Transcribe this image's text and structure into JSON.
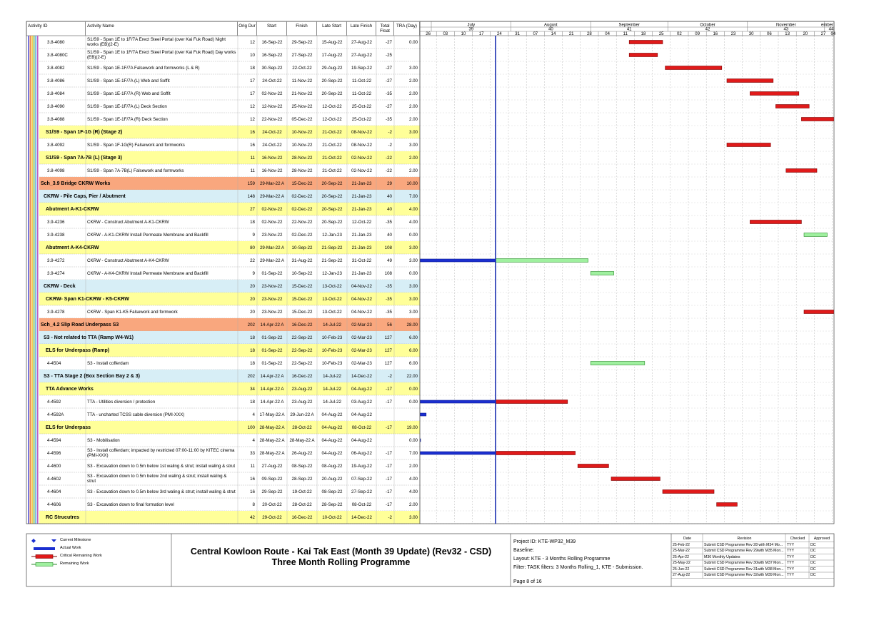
{
  "columns": [
    "Activity ID",
    "Activity Name",
    "Orig Dur",
    "Start",
    "Finish",
    "Late Start",
    "Late Finish",
    "Total Float",
    "TRA (Day)"
  ],
  "timeline": {
    "months": [
      "July",
      "August",
      "September",
      "October",
      "November",
      "ember"
    ],
    "periods": [
      "39",
      "40",
      "41",
      "42",
      "43",
      "44"
    ],
    "days": [
      "26",
      "03",
      "10",
      "17",
      "24",
      "31",
      "07",
      "14",
      "21",
      "28",
      "04",
      "11",
      "18",
      "25",
      "02",
      "09",
      "16",
      "23",
      "30",
      "06",
      "13",
      "20",
      "27",
      "04"
    ]
  },
  "rows": [
    {
      "level": "activity",
      "id": "3.8-4080",
      "name": "S1/S9 - Span 1E to 1F/7A Erect Steel Portal (over Kai Fuk Road) Night works (EB)(2-E)",
      "orig_dur": 12,
      "start": "16-Sep-22",
      "finish": "29-Sep-22",
      "late_start": "15-Aug-22",
      "late_finish": "27-Aug-22",
      "total_float": -27,
      "tra": "0.00"
    },
    {
      "level": "activity",
      "id": "3.8-4080C",
      "name": "S1/S9 - Span 1E to 1F/7A Erect Steel Portal (over Kai Fuk Road) Day works (EB)(2-E)",
      "orig_dur": 10,
      "start": "16-Sep-22",
      "finish": "27-Sep-22",
      "late_start": "17-Aug-22",
      "late_finish": "27-Aug-22",
      "total_float": -25,
      "tra": null
    },
    {
      "level": "activity",
      "id": "3.8-4082",
      "name": "S1/S9 - Span 1E-1F/7A Falsework and formworks (L & R)",
      "orig_dur": 18,
      "start": "30-Sep-22",
      "finish": "22-Oct-22",
      "late_start": "29-Aug-22",
      "late_finish": "19-Sep-22",
      "total_float": -27,
      "tra": "3.00"
    },
    {
      "level": "activity",
      "id": "3.8-4086",
      "name": "S1/S9 - Span 1E-1F/7A (L) Web and Soffit",
      "orig_dur": 17,
      "start": "24-Oct-22",
      "finish": "11-Nov-22",
      "late_start": "20-Sep-22",
      "late_finish": "11-Oct-22",
      "total_float": -27,
      "tra": "2.00"
    },
    {
      "level": "activity",
      "id": "3.8-4084",
      "name": "S1/S9 - Span 1E-1F/7A (R) Web and Soffit",
      "orig_dur": 17,
      "start": "02-Nov-22",
      "finish": "21-Nov-22",
      "late_start": "20-Sep-22",
      "late_finish": "11-Oct-22",
      "total_float": -35,
      "tra": "2.00"
    },
    {
      "level": "activity",
      "id": "3.8-4090",
      "name": "S1/S9 - Span 1E-1F/7A (L) Deck Section",
      "orig_dur": 12,
      "start": "12-Nov-22",
      "finish": "25-Nov-22",
      "late_start": "12-Oct-22",
      "late_finish": "25-Oct-22",
      "total_float": -27,
      "tra": "2.00"
    },
    {
      "level": "activity",
      "id": "3.8-4088",
      "name": "S1/S9 - Span 1E-1F/7A (R) Deck Section",
      "orig_dur": 12,
      "start": "22-Nov-22",
      "finish": "05-Dec-22",
      "late_start": "12-Oct-22",
      "late_finish": "25-Oct-22",
      "total_float": -35,
      "tra": "2.00"
    },
    {
      "level": "wbs3",
      "name": "S1/S9 - Span 1F-1G (R) (Stage 2)",
      "orig_dur": 16,
      "start": "24-Oct-22",
      "finish": "10-Nov-22",
      "late_start": "21-Oct-22",
      "late_finish": "08-Nov-22",
      "total_float": -2,
      "tra": "3.00"
    },
    {
      "level": "activity",
      "id": "3.8-4092",
      "name": "S1/S9 - Span 1F-1G(R) Falsework and formworks",
      "orig_dur": 16,
      "start": "24-Oct-22",
      "finish": "10-Nov-22",
      "late_start": "21-Oct-22",
      "late_finish": "08-Nov-22",
      "total_float": -2,
      "tra": "3.00"
    },
    {
      "level": "wbs3",
      "name": "S1/S9 - Span 7A-7B (L) (Stage 3)",
      "orig_dur": 11,
      "start": "16-Nov-22",
      "finish": "28-Nov-22",
      "late_start": "21-Oct-22",
      "late_finish": "02-Nov-22",
      "total_float": -22,
      "tra": "2.00"
    },
    {
      "level": "activity",
      "id": "3.8-4098",
      "name": "S1/S9 - Span 7A-7B(L) Falsework and formworks",
      "orig_dur": 11,
      "start": "16-Nov-22",
      "finish": "28-Nov-22",
      "late_start": "21-Oct-22",
      "late_finish": "02-Nov-22",
      "total_float": -22,
      "tra": "2.00"
    },
    {
      "level": "wbs1",
      "name": "Sch_3.9 Bridge CKRW Works",
      "orig_dur": 159,
      "start": "29-Mar-22 A",
      "finish": "15-Dec-22",
      "late_start": "20-Sep-22",
      "late_finish": "21-Jan-23",
      "total_float": 29,
      "tra": "10.00"
    },
    {
      "level": "wbs2",
      "name": "CKRW - Pile Caps, Pier / Abutment",
      "orig_dur": 148,
      "start": "29-Mar-22 A",
      "finish": "02-Dec-22",
      "late_start": "20-Sep-22",
      "late_finish": "21-Jan-23",
      "total_float": 40,
      "tra": "7.00"
    },
    {
      "level": "wbs3",
      "name": "Abutment A-K1-CKRW",
      "orig_dur": 27,
      "start": "02-Nov-22",
      "finish": "02-Dec-22",
      "late_start": "20-Sep-22",
      "late_finish": "21-Jan-23",
      "total_float": 40,
      "tra": "4.00"
    },
    {
      "level": "activity",
      "id": "3.9-4236",
      "name": "CKRW - Construct Abutment A-K1-CKRW",
      "orig_dur": 18,
      "start": "02-Nov-22",
      "finish": "22-Nov-22",
      "late_start": "20-Sep-22",
      "late_finish": "12-Oct-22",
      "total_float": -35,
      "tra": "4.00"
    },
    {
      "level": "activity",
      "id": "3.9-4238",
      "name": "CKRW - A-K1-CKRW Install Permeate Membrane and Backfill",
      "orig_dur": 9,
      "start": "23-Nov-22",
      "finish": "02-Dec-22",
      "late_start": "12-Jan-23",
      "late_finish": "21-Jan-23",
      "total_float": 40,
      "tra": "0.00"
    },
    {
      "level": "wbs3",
      "name": "Abutment A-K4-CKRW",
      "orig_dur": 80,
      "start": "29-Mar-22 A",
      "finish": "10-Sep-22",
      "late_start": "21-Sep-22",
      "late_finish": "21-Jan-23",
      "total_float": 108,
      "tra": "3.00"
    },
    {
      "level": "activity",
      "id": "3.9-4272",
      "name": "CKRW - Construct Abutment A-K4-CKRW",
      "orig_dur": 22,
      "start": "29-Mar-22 A",
      "finish": "31-Aug-22",
      "late_start": "21-Sep-22",
      "late_finish": "31-Oct-22",
      "total_float": 49,
      "tra": "3.00"
    },
    {
      "level": "activity",
      "id": "3.9-4274",
      "name": "CKRW - A-K4-CKRW Install Permeate Membrane and Backfill",
      "orig_dur": 9,
      "start": "01-Sep-22",
      "finish": "10-Sep-22",
      "late_start": "12-Jan-23",
      "late_finish": "21-Jan-23",
      "total_float": 108,
      "tra": "0.00"
    },
    {
      "level": "wbs2",
      "name": "CKRW - Deck",
      "orig_dur": 20,
      "start": "23-Nov-22",
      "finish": "15-Dec-22",
      "late_start": "13-Oct-22",
      "late_finish": "04-Nov-22",
      "total_float": -35,
      "tra": "3.00"
    },
    {
      "level": "wbs3",
      "name": "CKRW- Span K1-CKRW - K5-CKRW",
      "orig_dur": 20,
      "start": "23-Nov-22",
      "finish": "15-Dec-22",
      "late_start": "13-Oct-22",
      "late_finish": "04-Nov-22",
      "total_float": -35,
      "tra": "3.00"
    },
    {
      "level": "activity",
      "id": "3.9-4278",
      "name": "CKRW - Span K1-K5 Falsework and formwork",
      "orig_dur": 20,
      "start": "23-Nov-22",
      "finish": "15-Dec-22",
      "late_start": "13-Oct-22",
      "late_finish": "04-Nov-22",
      "total_float": -35,
      "tra": "3.00"
    },
    {
      "level": "wbs1",
      "name": "Sch_4.2 Slip Road Underpass S3",
      "orig_dur": 202,
      "start": "14-Apr-22 A",
      "finish": "16-Dec-22",
      "late_start": "14-Jul-22",
      "late_finish": "02-Mar-23",
      "total_float": 56,
      "tra": "28.00"
    },
    {
      "level": "wbs2",
      "name": "S3 - Not related to TTA (Ramp W4-W1)",
      "orig_dur": 18,
      "start": "01-Sep-22",
      "finish": "22-Sep-22",
      "late_start": "10-Feb-23",
      "late_finish": "02-Mar-23",
      "total_float": 127,
      "tra": "6.00"
    },
    {
      "level": "wbs3",
      "name": "ELS for Underpass (Ramp)",
      "orig_dur": 18,
      "start": "01-Sep-22",
      "finish": "22-Sep-22",
      "late_start": "10-Feb-23",
      "late_finish": "02-Mar-23",
      "total_float": 127,
      "tra": "6.00"
    },
    {
      "level": "activity",
      "id": "4-4504",
      "name": "S3 - Install cofferdam",
      "orig_dur": 18,
      "start": "01-Sep-22",
      "finish": "22-Sep-22",
      "late_start": "10-Feb-23",
      "late_finish": "02-Mar-23",
      "total_float": 127,
      "tra": "6.00"
    },
    {
      "level": "wbs2",
      "name": "S3 - TTA Stage 2 (Box Section Bay 2 & 3)",
      "orig_dur": 202,
      "start": "14-Apr-22 A",
      "finish": "16-Dec-22",
      "late_start": "14-Jul-22",
      "late_finish": "14-Dec-22",
      "total_float": -2,
      "tra": "22.00"
    },
    {
      "level": "wbs3",
      "name": "TTA Advance Works",
      "orig_dur": 34,
      "start": "14-Apr-22 A",
      "finish": "23-Aug-22",
      "late_start": "14-Jul-22",
      "late_finish": "04-Aug-22",
      "total_float": -17,
      "tra": "0.00"
    },
    {
      "level": "activity",
      "id": "4-4592",
      "name": "TTA - Utilities diversion / protection",
      "orig_dur": 18,
      "start": "14-Apr-22 A",
      "finish": "23-Aug-22",
      "late_start": "14-Jul-22",
      "late_finish": "03-Aug-22",
      "total_float": -17,
      "tra": "0.00"
    },
    {
      "level": "activity",
      "id": "4-4592A",
      "name": "TTA - uncharted TCSS cable diversion (PMI-XXX)",
      "orig_dur": 4,
      "start": "17-May-22 A",
      "finish": "29-Jun-22 A",
      "late_start": "04-Aug-22",
      "late_finish": "04-Aug-22",
      "total_float": null,
      "tra": null
    },
    {
      "level": "wbs3",
      "name": "ELS for Underpass",
      "orig_dur": 100,
      "start": "28-May-22 A",
      "finish": "28-Oct-22",
      "late_start": "04-Aug-22",
      "late_finish": "08-Oct-22",
      "total_float": -17,
      "tra": "19.00"
    },
    {
      "level": "activity",
      "id": "4-4594",
      "name": "S3 - Mobilisation",
      "orig_dur": 4,
      "start": "28-May-22 A",
      "finish": "28-May-22 A",
      "late_start": "04-Aug-22",
      "late_finish": "04-Aug-22",
      "total_float": null,
      "tra": "0.00"
    },
    {
      "level": "activity",
      "id": "4-4596",
      "name": "S3 - Install cofferdam; impacted by restricted 07:00-11:00 by KITEC cinema (PMI-XXX)",
      "orig_dur": 33,
      "start": "28-May-22 A",
      "finish": "26-Aug-22",
      "late_start": "04-Aug-22",
      "late_finish": "06-Aug-22",
      "total_float": -17,
      "tra": "7.00"
    },
    {
      "level": "activity",
      "id": "4-4600",
      "name": "S3 - Excavation down to 0.5m below 1st waling & strut; install waling & strut",
      "orig_dur": 11,
      "start": "27-Aug-22",
      "finish": "08-Sep-22",
      "late_start": "08-Aug-22",
      "late_finish": "19-Aug-22",
      "total_float": -17,
      "tra": "2.00"
    },
    {
      "level": "activity",
      "id": "4-4602",
      "name": "S3 - Excavation down to 0.5m below 2nd waling & strut; install waling & strut",
      "orig_dur": 16,
      "start": "09-Sep-22",
      "finish": "28-Sep-22",
      "late_start": "20-Aug-22",
      "late_finish": "07-Sep-22",
      "total_float": -17,
      "tra": "4.00"
    },
    {
      "level": "activity",
      "id": "4-4604",
      "name": "S3 - Excavation down to 0.5m below 3rd waling & strut; install waling & strut",
      "orig_dur": 16,
      "start": "29-Sep-22",
      "finish": "19-Oct-22",
      "late_start": "08-Sep-22",
      "late_finish": "27-Sep-22",
      "total_float": -17,
      "tra": "4.00"
    },
    {
      "level": "activity",
      "id": "4-4606",
      "name": "S3 - Excavation down to final formation level",
      "orig_dur": 8,
      "start": "20-Oct-22",
      "finish": "28-Oct-22",
      "late_start": "28-Sep-22",
      "late_finish": "08-Oct-22",
      "total_float": -17,
      "tra": "2.00"
    },
    {
      "level": "wbs3",
      "name": "RC Strucutres",
      "orig_dur": 42,
      "start": "29-Oct-22",
      "finish": "16-Dec-22",
      "late_start": "10-Oct-22",
      "late_finish": "14-Dec-22",
      "total_float": -2,
      "tra": "3.00"
    }
  ],
  "footer": {
    "legend": [
      "Current Milestone",
      "Actual Work",
      "Critical Remaining Work",
      "Remaining Work"
    ],
    "title": [
      "Central Kowloon Route - Kai Tak East (Month 39 Update) (Rev32 - CSD)",
      "Three Month Rolling Programme"
    ],
    "project": [
      "Project ID: KTE-WP32_M39",
      "Baseline:",
      "Layout: KTE - 3 Months Rolling Programme",
      "Filter: TASK filters: 3 Months Rolling_1, KTE - Submission."
    ],
    "page": "Page 8 of 16",
    "revisions": {
      "headers": [
        "Date",
        "Revision",
        "Checked",
        "Approved"
      ],
      "rows": [
        [
          "25-Feb-22",
          "Submit CSD Programme Rev 28 with M34 Mo...",
          "TYY",
          "DC"
        ],
        [
          "25-Mar-22",
          "Submit CSD Programme Rev 29with M35 Mon...",
          "TYY",
          "DC"
        ],
        [
          "25-Apr-22",
          "M36 Monthly Updates",
          "TYY",
          "DC"
        ],
        [
          "25-May-22",
          "Submit CSD Programme Rev 30with M37 Mon...",
          "TYY",
          "DC"
        ],
        [
          "25-Jun-22",
          "Submit CSD Programme Rev 31with M38 Mon...",
          "TYY",
          "DC"
        ],
        [
          "27-Aug-22",
          "Submit CSD Programme Rev 32with M39 Mon...",
          "TYY",
          "DC"
        ]
      ]
    }
  }
}
